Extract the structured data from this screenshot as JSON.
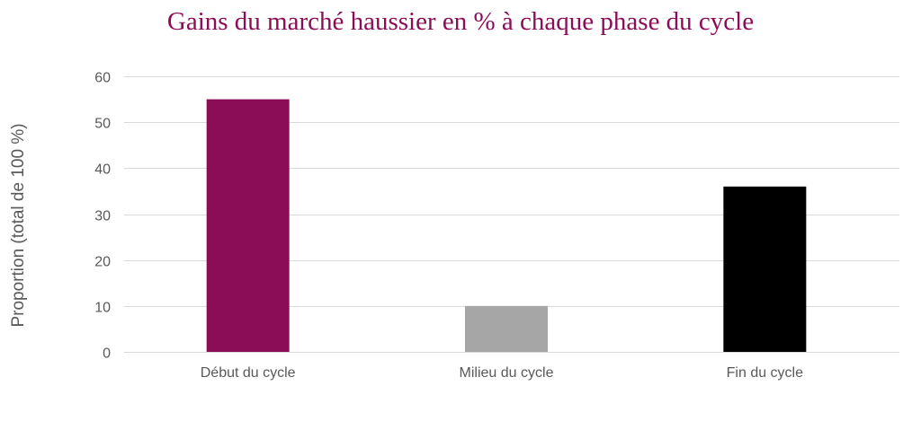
{
  "chart_data": {
    "type": "bar",
    "title": "Gains du marché haussier en % à chaque phase du cycle",
    "ylabel": "Proportion (total de 100 %)",
    "xlabel": "",
    "categories": [
      "Début du cycle",
      "Milieu du cycle",
      "Fin du cycle"
    ],
    "values": [
      55,
      10,
      36
    ],
    "colors": [
      "#8b0d57",
      "#a6a6a6",
      "#000000"
    ],
    "ylim": [
      0,
      60
    ],
    "yticks": [
      0,
      10,
      20,
      30,
      40,
      50,
      60
    ],
    "grid": true,
    "legend": "none"
  }
}
